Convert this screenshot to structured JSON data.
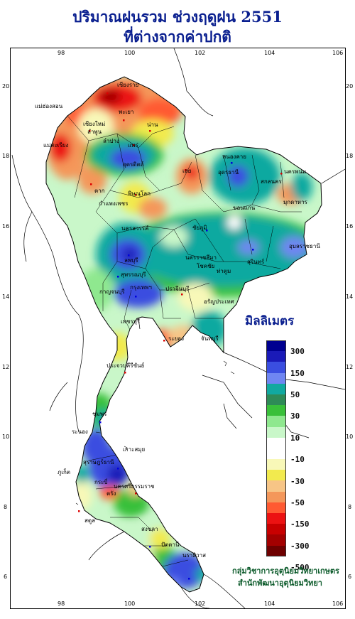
{
  "title": {
    "line1": "ปริมาณฝนรวม ช่วงฤดูฝน 2551",
    "line2": "ที่ต่างจากค่าปกติ"
  },
  "axes": {
    "x_ticks": [
      "98",
      "100",
      "102",
      "104",
      "106"
    ],
    "y_ticks": [
      "20",
      "18",
      "16",
      "14",
      "12",
      "10",
      "8",
      "6"
    ]
  },
  "legend": {
    "title": "มิลลิเมตร",
    "labels": [
      "300",
      "150",
      "50",
      "30",
      "10",
      "-10",
      "-30",
      "-50",
      "-150",
      "-300",
      "-500"
    ],
    "colors": [
      "#000090",
      "#1a1ab8",
      "#3a4ee0",
      "#6f86f2",
      "#11a9a0",
      "#2e8b57",
      "#39c03a",
      "#8fe88f",
      "#c9f7c9",
      "#ffffff",
      "#ffffff",
      "#f8f8b8",
      "#f2ea4e",
      "#f7c586",
      "#f4975a",
      "#ff5a32",
      "#ec1212",
      "#c80000",
      "#a30000",
      "#6e0000"
    ]
  },
  "provinces": {
    "chiang_rai": "เชียงราย",
    "mae_hong_son": "แม่ฮ่องสอน",
    "phayao": "พะเยา",
    "chiang_mai": "เชียงใหม่",
    "nan": "น่าน",
    "lamphun": "ลำพูน",
    "phrae": "แพร่",
    "lampang": "ลำปาง",
    "mae_sariang": "แม่สะเรียง",
    "uttaradit": "อุตรดิตถ์",
    "nong_khai": "หนองคาย",
    "udon_thani": "อุดรธานี",
    "nakhon_phanom": "นครพนม",
    "loei": "เลย",
    "sakon_nakhon": "สกลนคร",
    "tak": "ตาก",
    "phitsanulok": "พิษณุโลก",
    "mukdahan": "มุกดาหาร",
    "kamphaeng_phet": "กำแพงเพชร",
    "khon_kaen": "ขอนแก่น",
    "nakhon_sawan": "นครสวรรค์",
    "chaiyaphum": "ชัยภูมิ",
    "ubon": "อุบลราชธานี",
    "lop_buri": "ลพบุรี",
    "nakhon_ratchasima": "นครราชสีมา",
    "surin": "สุรินทร์",
    "suphan_buri": "สุพรรณบุรี",
    "chok_chai": "โชคชัย",
    "tha_tum": "ท่าตูม",
    "kanchanaburi": "กาญจนบุรี",
    "bangkok": "กรุงเทพฯ",
    "prachin_buri": "ปราจีนบุรี",
    "aranyaprathet": "อรัญประเทศ",
    "phetchaburi": "เพชรบุรี",
    "rayong": "ระยอง",
    "chanthaburi": "จันทบุรี",
    "prachuap": "ประจวบคีรีขันธ์",
    "chumphon": "ชุมพร",
    "ranong": "ระนอง",
    "ko_samui": "เกาะสมุย",
    "surat_thani": "สุราษฎร์ธานี",
    "phuket": "ภูเก็ต",
    "krabi": "กระบี่",
    "nakhon_si": "นครศรีธรรมราช",
    "trang": "ตรัง",
    "songkhla": "สงขลา",
    "satun": "สตูล",
    "pattani": "ปัตตานี",
    "narathiwat": "นราธิวาส"
  },
  "credit": {
    "line1": "กลุ่มวิชาการอุตุนิยมวิทยาเกษตร",
    "line2": "สำนักพัฒนาอุตุนิยมวิทยา"
  }
}
